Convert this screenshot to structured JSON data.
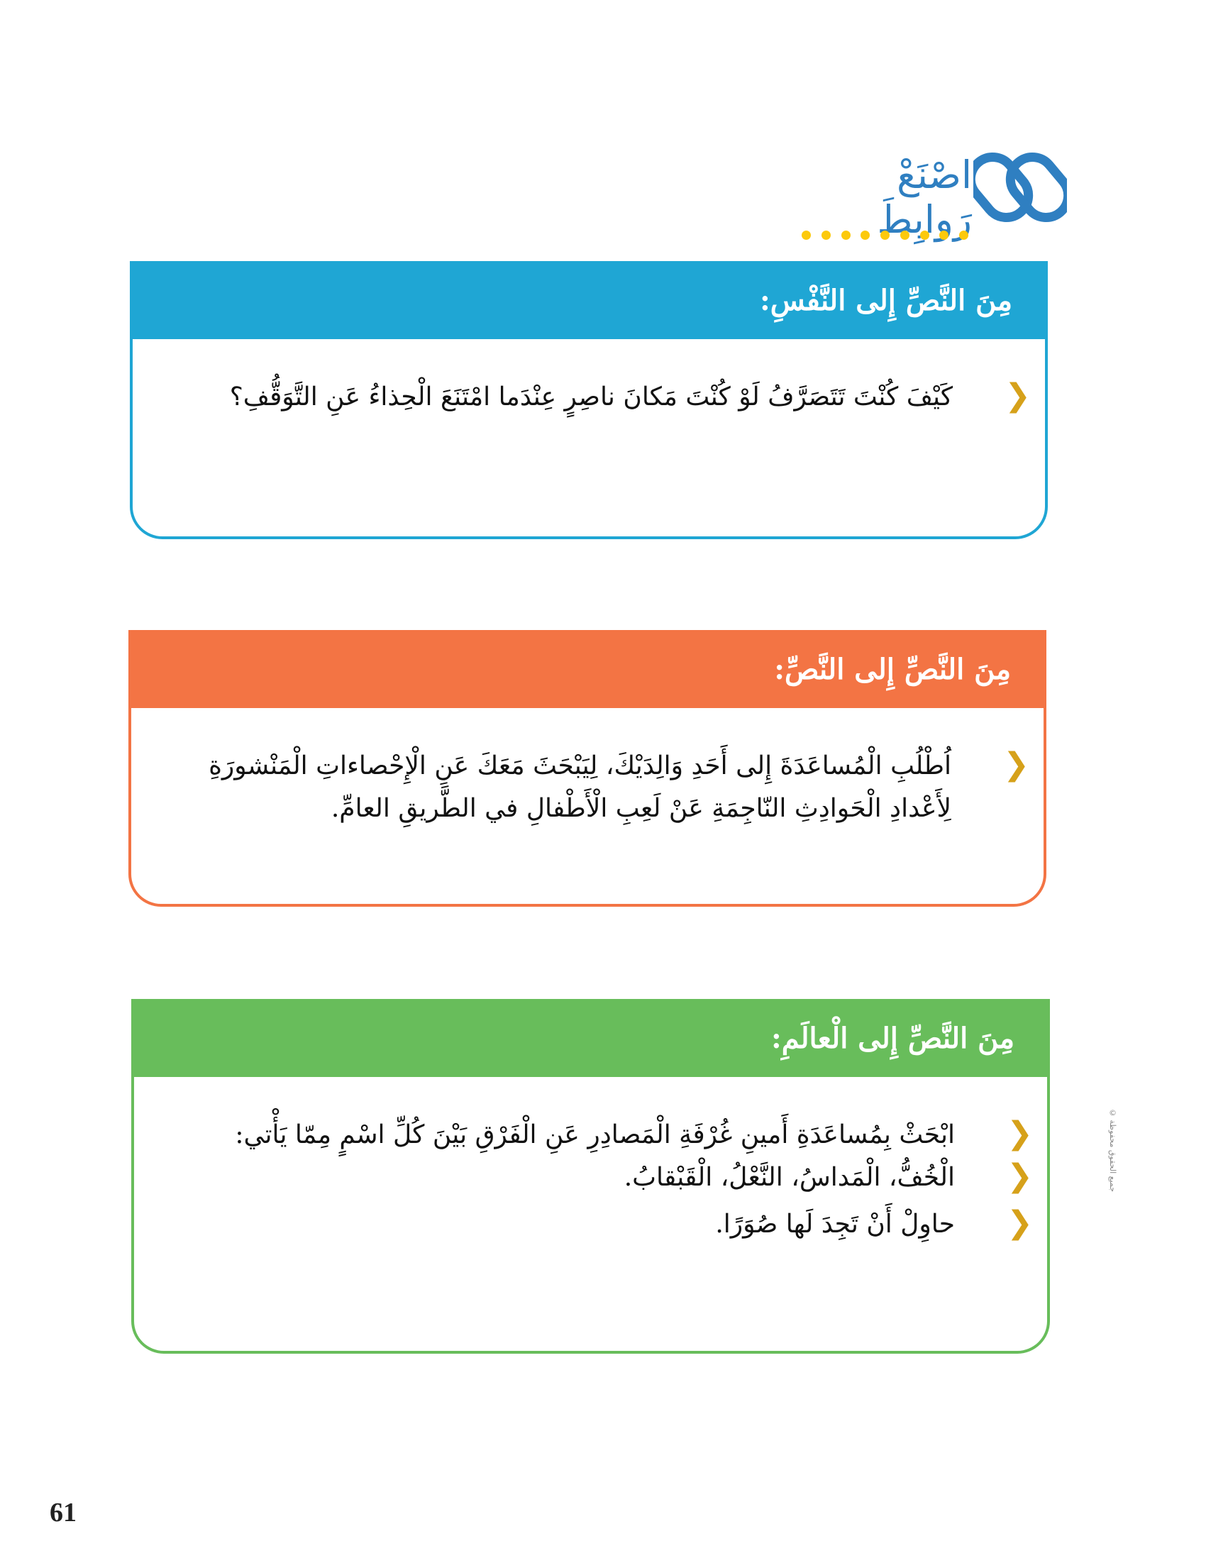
{
  "header": {
    "title": "اصْنَعْ رَوابِطَ",
    "icon": "chain-link-icon",
    "accent_color": "#2f7fc1",
    "dots_color": "#fcc90c"
  },
  "sections": [
    {
      "title": "مِنَ النَّصِّ إِلى النَّفْسِ:",
      "color": "#1fa6d4",
      "items": [
        "كَيْفَ كُنْتَ تَتَصَرَّفُ لَوْ كُنْتَ مَكانَ ناصِرٍ عِنْدَما امْتَنَعَ الْحِذاءُ عَنِ التَّوَقُّفِ؟"
      ]
    },
    {
      "title": "مِنَ النَّصِّ إِلى النَّصِّ:",
      "color": "#f37444",
      "items": [
        "اُطْلُبِ الْمُساعَدَةَ إِلى أَحَدِ وَالِدَيْكَ، لِيَبْحَثَ مَعَكَ عَنِ الْإِحْصاءاتِ الْمَنْشورَةِ لِأَعْدادِ الْحَوادِثِ النّاجِمَةِ عَنْ لَعِبِ الْأَطْفالِ في الطَّريقِ العامِّ."
      ]
    },
    {
      "title": "مِنَ النَّصِّ إِلى الْعالَمِ:",
      "color": "#68bd5b",
      "items": [
        "ابْحَثْ بِمُساعَدَةِ أَمينِ غُرْفَةِ الْمَصادِرِ عَنِ الْفَرْقِ بَيْنَ كُلِّ اسْمٍ مِمّا يَأْتي:",
        "الْخُفُّ، الْمَداسُ، النَّعْلُ، الْقَبْقابُ.",
        "حاوِلْ أَنْ تَجِدَ لَها صُوَرًا."
      ]
    }
  ],
  "side_note": "جميع الحقوق محفوظة ©",
  "page_number": "61"
}
